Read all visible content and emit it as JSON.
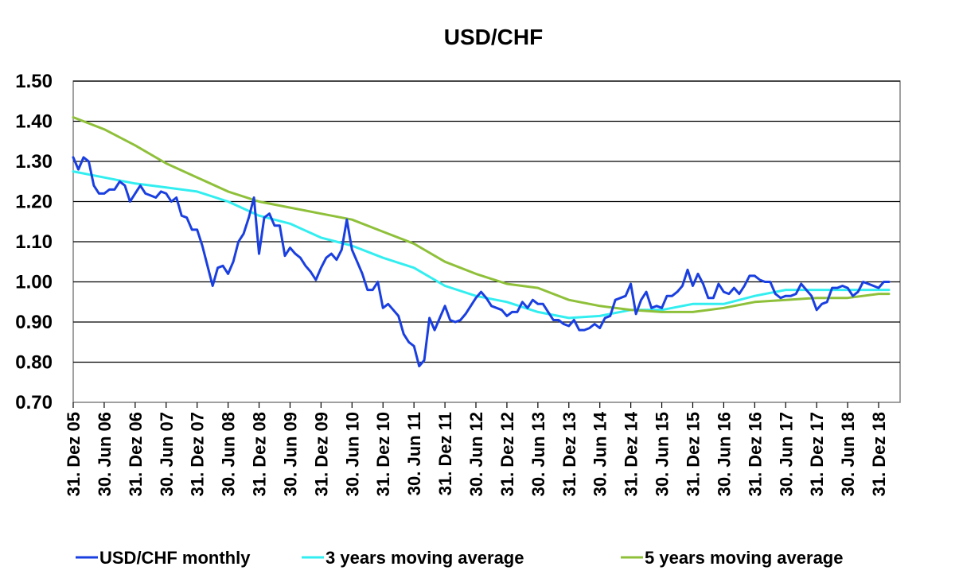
{
  "chart_data": {
    "type": "line",
    "title": "USD/CHF",
    "xlabel": "",
    "ylabel": "",
    "ylim": [
      0.7,
      1.5
    ],
    "y_ticks": [
      "0.70",
      "0.80",
      "0.90",
      "1.00",
      "1.10",
      "1.20",
      "1.30",
      "1.40",
      "1.50"
    ],
    "x_tick_labels": [
      "31. Dez 05",
      "30. Jun 06",
      "31. Dez 06",
      "30. Jun 07",
      "31. Dez 07",
      "30. Jun 08",
      "31. Dez 08",
      "30. Jun 09",
      "31. Dez 09",
      "30. Jun 10",
      "31. Dez 10",
      "30. Jun 11",
      "31. Dez 11",
      "30. Jun 12",
      "31. Dez 12",
      "30. Jun 13",
      "31. Dez 13",
      "30. Jun 14",
      "31. Dez 14",
      "30. Jun 15",
      "31. Dez 15",
      "30. Jun 16",
      "31. Dez 16",
      "30. Jun 17",
      "31. Dez 17",
      "30. Jun 18",
      "31. Dez 18"
    ],
    "x_start": "2005-12",
    "grid": true,
    "legend_position": "bottom",
    "colors": {
      "monthly": "#1a3fe0",
      "ma3": "#33eef0",
      "ma5": "#8fc03a",
      "grid": "#000000",
      "axis": "#808080"
    },
    "series": [
      {
        "name": "USD/CHF monthly",
        "color": "#1a3fe0",
        "width": 3,
        "points": [
          [
            "2005-12",
            1.31
          ],
          [
            "2006-01",
            1.28
          ],
          [
            "2006-02",
            1.31
          ],
          [
            "2006-03",
            1.3
          ],
          [
            "2006-04",
            1.24
          ],
          [
            "2006-05",
            1.22
          ],
          [
            "2006-06",
            1.22
          ],
          [
            "2006-07",
            1.23
          ],
          [
            "2006-08",
            1.23
          ],
          [
            "2006-09",
            1.25
          ],
          [
            "2006-10",
            1.24
          ],
          [
            "2006-11",
            1.2
          ],
          [
            "2006-12",
            1.22
          ],
          [
            "2007-01",
            1.24
          ],
          [
            "2007-02",
            1.22
          ],
          [
            "2007-03",
            1.215
          ],
          [
            "2007-04",
            1.21
          ],
          [
            "2007-05",
            1.225
          ],
          [
            "2007-06",
            1.22
          ],
          [
            "2007-07",
            1.2
          ],
          [
            "2007-08",
            1.21
          ],
          [
            "2007-09",
            1.165
          ],
          [
            "2007-10",
            1.16
          ],
          [
            "2007-11",
            1.13
          ],
          [
            "2007-12",
            1.13
          ],
          [
            "2008-01",
            1.09
          ],
          [
            "2008-02",
            1.04
          ],
          [
            "2008-03",
            0.99
          ],
          [
            "2008-04",
            1.035
          ],
          [
            "2008-05",
            1.04
          ],
          [
            "2008-06",
            1.02
          ],
          [
            "2008-07",
            1.05
          ],
          [
            "2008-08",
            1.1
          ],
          [
            "2008-09",
            1.12
          ],
          [
            "2008-10",
            1.16
          ],
          [
            "2008-11",
            1.21
          ],
          [
            "2008-12",
            1.07
          ],
          [
            "2009-01",
            1.16
          ],
          [
            "2009-02",
            1.17
          ],
          [
            "2009-03",
            1.14
          ],
          [
            "2009-04",
            1.14
          ],
          [
            "2009-05",
            1.065
          ],
          [
            "2009-06",
            1.085
          ],
          [
            "2009-07",
            1.07
          ],
          [
            "2009-08",
            1.06
          ],
          [
            "2009-09",
            1.04
          ],
          [
            "2009-10",
            1.025
          ],
          [
            "2009-11",
            1.005
          ],
          [
            "2009-12",
            1.035
          ],
          [
            "2010-01",
            1.06
          ],
          [
            "2010-02",
            1.07
          ],
          [
            "2010-03",
            1.055
          ],
          [
            "2010-04",
            1.08
          ],
          [
            "2010-05",
            1.155
          ],
          [
            "2010-06",
            1.08
          ],
          [
            "2010-07",
            1.05
          ],
          [
            "2010-08",
            1.02
          ],
          [
            "2010-09",
            0.98
          ],
          [
            "2010-10",
            0.98
          ],
          [
            "2010-11",
            1.0
          ],
          [
            "2010-12",
            0.935
          ],
          [
            "2011-01",
            0.945
          ],
          [
            "2011-02",
            0.93
          ],
          [
            "2011-03",
            0.915
          ],
          [
            "2011-04",
            0.87
          ],
          [
            "2011-05",
            0.85
          ],
          [
            "2011-06",
            0.84
          ],
          [
            "2011-07",
            0.79
          ],
          [
            "2011-08",
            0.805
          ],
          [
            "2011-09",
            0.91
          ],
          [
            "2011-10",
            0.88
          ],
          [
            "2011-11",
            0.91
          ],
          [
            "2011-12",
            0.94
          ],
          [
            "2012-01",
            0.905
          ],
          [
            "2012-02",
            0.9
          ],
          [
            "2012-03",
            0.905
          ],
          [
            "2012-04",
            0.92
          ],
          [
            "2012-05",
            0.94
          ],
          [
            "2012-06",
            0.96
          ],
          [
            "2012-07",
            0.975
          ],
          [
            "2012-08",
            0.96
          ],
          [
            "2012-09",
            0.94
          ],
          [
            "2012-10",
            0.935
          ],
          [
            "2012-11",
            0.93
          ],
          [
            "2012-12",
            0.915
          ],
          [
            "2013-01",
            0.925
          ],
          [
            "2013-02",
            0.925
          ],
          [
            "2013-03",
            0.95
          ],
          [
            "2013-04",
            0.935
          ],
          [
            "2013-05",
            0.955
          ],
          [
            "2013-06",
            0.945
          ],
          [
            "2013-07",
            0.945
          ],
          [
            "2013-08",
            0.925
          ],
          [
            "2013-09",
            0.905
          ],
          [
            "2013-10",
            0.905
          ],
          [
            "2013-11",
            0.895
          ],
          [
            "2013-12",
            0.89
          ],
          [
            "2014-01",
            0.905
          ],
          [
            "2014-02",
            0.88
          ],
          [
            "2014-03",
            0.88
          ],
          [
            "2014-04",
            0.885
          ],
          [
            "2014-05",
            0.895
          ],
          [
            "2014-06",
            0.885
          ],
          [
            "2014-07",
            0.91
          ],
          [
            "2014-08",
            0.915
          ],
          [
            "2014-09",
            0.955
          ],
          [
            "2014-10",
            0.96
          ],
          [
            "2014-11",
            0.965
          ],
          [
            "2014-12",
            0.995
          ],
          [
            "2015-01",
            0.92
          ],
          [
            "2015-02",
            0.955
          ],
          [
            "2015-03",
            0.975
          ],
          [
            "2015-04",
            0.935
          ],
          [
            "2015-05",
            0.94
          ],
          [
            "2015-06",
            0.935
          ],
          [
            "2015-07",
            0.965
          ],
          [
            "2015-08",
            0.965
          ],
          [
            "2015-09",
            0.975
          ],
          [
            "2015-10",
            0.99
          ],
          [
            "2015-11",
            1.03
          ],
          [
            "2015-12",
            0.99
          ],
          [
            "2016-01",
            1.02
          ],
          [
            "2016-02",
            0.995
          ],
          [
            "2016-03",
            0.96
          ],
          [
            "2016-04",
            0.96
          ],
          [
            "2016-05",
            0.995
          ],
          [
            "2016-06",
            0.975
          ],
          [
            "2016-07",
            0.97
          ],
          [
            "2016-08",
            0.985
          ],
          [
            "2016-09",
            0.97
          ],
          [
            "2016-10",
            0.99
          ],
          [
            "2016-11",
            1.015
          ],
          [
            "2016-12",
            1.015
          ],
          [
            "2017-01",
            1.005
          ],
          [
            "2017-02",
            1.0
          ],
          [
            "2017-03",
            1.0
          ],
          [
            "2017-04",
            0.97
          ],
          [
            "2017-05",
            0.96
          ],
          [
            "2017-06",
            0.965
          ],
          [
            "2017-07",
            0.965
          ],
          [
            "2017-08",
            0.97
          ],
          [
            "2017-09",
            0.995
          ],
          [
            "2017-10",
            0.98
          ],
          [
            "2017-11",
            0.965
          ],
          [
            "2017-12",
            0.93
          ],
          [
            "2018-01",
            0.945
          ],
          [
            "2018-02",
            0.95
          ],
          [
            "2018-03",
            0.985
          ],
          [
            "2018-04",
            0.985
          ],
          [
            "2018-05",
            0.99
          ],
          [
            "2018-06",
            0.985
          ],
          [
            "2018-07",
            0.965
          ],
          [
            "2018-08",
            0.975
          ],
          [
            "2018-09",
            1.0
          ],
          [
            "2018-10",
            0.995
          ],
          [
            "2018-11",
            0.99
          ],
          [
            "2018-12",
            0.985
          ],
          [
            "2019-01",
            1.0
          ],
          [
            "2019-02",
            1.0
          ]
        ]
      },
      {
        "name": "3 years moving average",
        "color": "#33eef0",
        "width": 3,
        "points": [
          [
            "2005-12",
            1.275
          ],
          [
            "2006-06",
            1.26
          ],
          [
            "2006-12",
            1.245
          ],
          [
            "2007-06",
            1.235
          ],
          [
            "2007-12",
            1.225
          ],
          [
            "2008-06",
            1.2
          ],
          [
            "2008-12",
            1.165
          ],
          [
            "2009-06",
            1.145
          ],
          [
            "2009-12",
            1.11
          ],
          [
            "2010-06",
            1.09
          ],
          [
            "2010-12",
            1.06
          ],
          [
            "2011-06",
            1.035
          ],
          [
            "2011-12",
            0.99
          ],
          [
            "2012-06",
            0.965
          ],
          [
            "2012-12",
            0.95
          ],
          [
            "2013-06",
            0.925
          ],
          [
            "2013-12",
            0.91
          ],
          [
            "2014-06",
            0.915
          ],
          [
            "2014-12",
            0.93
          ],
          [
            "2015-06",
            0.93
          ],
          [
            "2015-12",
            0.945
          ],
          [
            "2016-06",
            0.945
          ],
          [
            "2016-12",
            0.965
          ],
          [
            "2017-06",
            0.98
          ],
          [
            "2017-12",
            0.98
          ],
          [
            "2018-06",
            0.98
          ],
          [
            "2018-12",
            0.98
          ],
          [
            "2019-02",
            0.98
          ]
        ]
      },
      {
        "name": "5 years moving average",
        "color": "#8fc03a",
        "width": 3,
        "points": [
          [
            "2005-12",
            1.41
          ],
          [
            "2006-06",
            1.38
          ],
          [
            "2006-12",
            1.34
          ],
          [
            "2007-06",
            1.295
          ],
          [
            "2007-12",
            1.26
          ],
          [
            "2008-06",
            1.225
          ],
          [
            "2008-12",
            1.2
          ],
          [
            "2009-06",
            1.185
          ],
          [
            "2009-12",
            1.17
          ],
          [
            "2010-06",
            1.155
          ],
          [
            "2010-12",
            1.125
          ],
          [
            "2011-06",
            1.095
          ],
          [
            "2011-12",
            1.05
          ],
          [
            "2012-06",
            1.02
          ],
          [
            "2012-12",
            0.995
          ],
          [
            "2013-06",
            0.985
          ],
          [
            "2013-12",
            0.955
          ],
          [
            "2014-06",
            0.94
          ],
          [
            "2014-12",
            0.93
          ],
          [
            "2015-06",
            0.925
          ],
          [
            "2015-12",
            0.925
          ],
          [
            "2016-06",
            0.935
          ],
          [
            "2016-12",
            0.95
          ],
          [
            "2017-06",
            0.955
          ],
          [
            "2017-12",
            0.96
          ],
          [
            "2018-06",
            0.96
          ],
          [
            "2018-12",
            0.97
          ],
          [
            "2019-02",
            0.97
          ]
        ]
      }
    ]
  }
}
